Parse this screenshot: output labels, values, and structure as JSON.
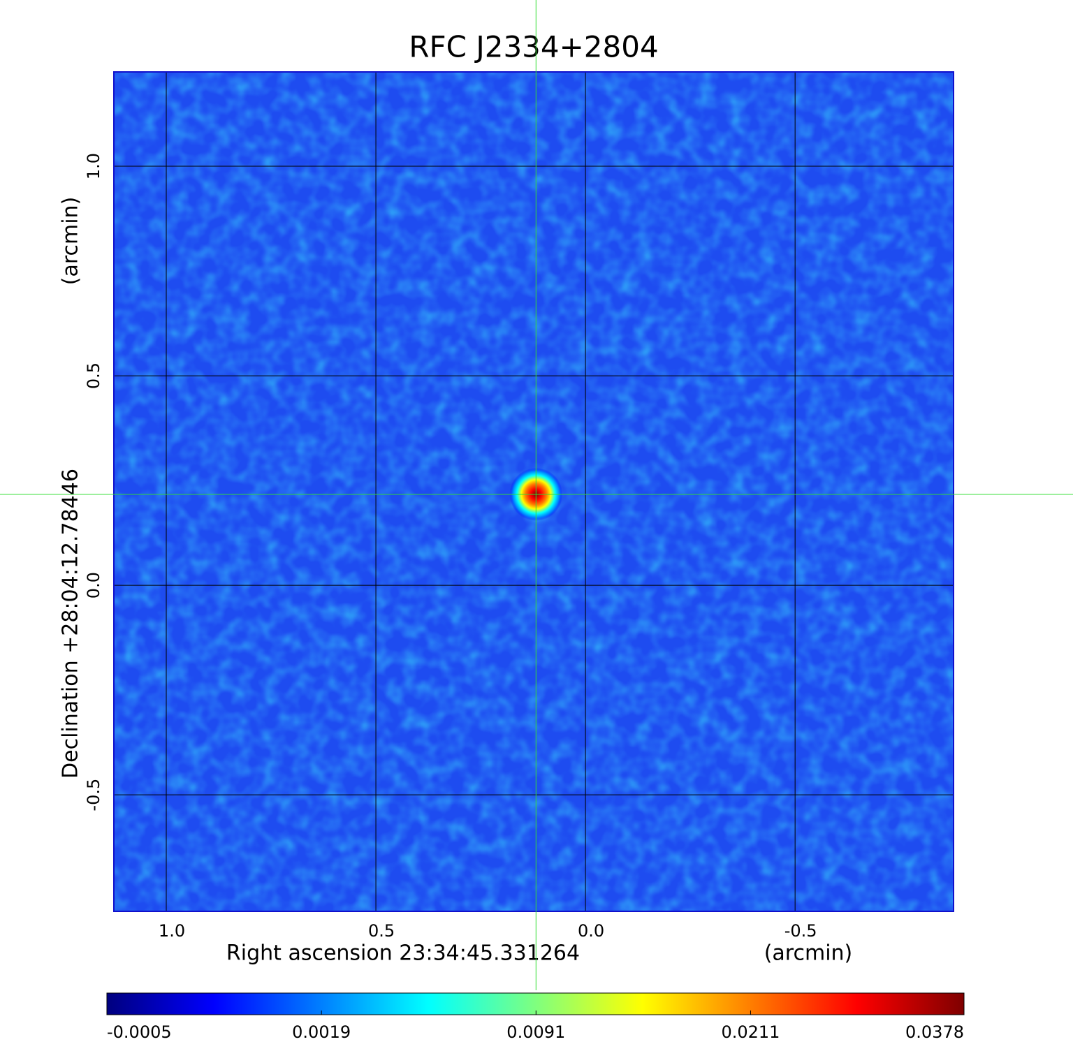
{
  "chart_data": {
    "type": "image",
    "title": "RFC J2334+2804",
    "xlabel": "Right ascension  23:34:45.331264",
    "xunit": "(arcmin)",
    "ylabel": "Declination  +28:04:12.78446",
    "yunit": "(arcmin)",
    "xlim": [
      1.125,
      -0.878
    ],
    "ylim": [
      -0.778,
      1.225
    ],
    "xticks": [
      {
        "value": 1,
        "label": "1.0"
      },
      0.5,
      {
        "value": 0,
        "label": "0.0"
      },
      -0.5
    ],
    "yticks": [
      {
        "value": 1,
        "label": "1.0"
      },
      0.5,
      {
        "value": 0,
        "label": "0.0"
      },
      -0.5
    ],
    "grid": true,
    "source": {
      "x": 0.118,
      "y": 0.217,
      "peak": 0.0378
    },
    "colorbar": {
      "lim": [
        -0.0005,
        0.0378
      ],
      "scale": "sqrt",
      "ticks": [
        -0.0005,
        0.0019,
        0.0091,
        0.0211,
        0.0378
      ]
    },
    "colormap": [
      "#00007f",
      "#0000ff",
      "#007fff",
      "#00ffff",
      "#7fff7f",
      "#ffff00",
      "#ff7f00",
      "#ff0000",
      "#7f0000"
    ],
    "crosshair_color": "#33dd33",
    "title_color": "#1a1adb"
  }
}
